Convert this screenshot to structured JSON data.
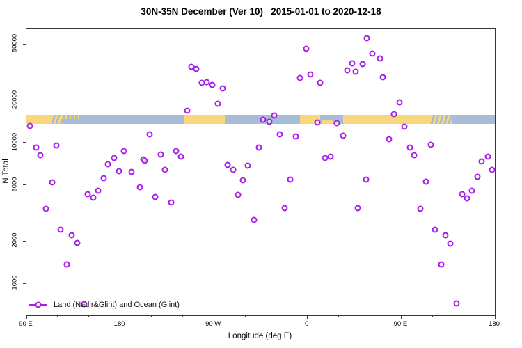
{
  "title": "30N-35N December (Ver 10)   2015-01-01 to 2020-12-18",
  "colors": {
    "marker": "#A61BE8",
    "land": "#F9D77E",
    "ocean": "#A9BCD7",
    "axis": "#383838"
  },
  "chart_data": {
    "type": "scatter",
    "title": "30N-35N December (Ver 10)   2015-01-01 to 2020-12-18",
    "xlabel": "Longitude (deg E)",
    "ylabel": "N Total",
    "x_axis": {
      "note": "longitude unwrapped eastward: 90E -> 180 -> 90W -> 0 -> 90E -> 180",
      "range_deg": [
        90,
        540
      ],
      "major_ticks": [
        {
          "lon": 90,
          "label": "90 E"
        },
        {
          "lon": 180,
          "label": "180"
        },
        {
          "lon": 270,
          "label": "90 W"
        },
        {
          "lon": 360,
          "label": "0"
        },
        {
          "lon": 450,
          "label": "90 E"
        },
        {
          "lon": 540,
          "label": "180"
        }
      ],
      "minor_ticks_lon": [
        120,
        150,
        210,
        240,
        300,
        330,
        390,
        420,
        480,
        510
      ]
    },
    "y_axis": {
      "scale": "log10",
      "ticks": [
        1000,
        2000,
        5000,
        10000,
        20000,
        50000
      ],
      "range": [
        900,
        60000
      ],
      "grid": false
    },
    "legend": {
      "label": "Land (Nadir&Glint) and Ocean (Glint)",
      "marker": "open-circle-on-line",
      "position": "bottom-left-inside"
    },
    "map_strip": {
      "description": "land/ocean map band of the 30N-35N latitude zone drawn across the plot",
      "n_top": 15700,
      "n_bottom": 13600,
      "base": "ocean",
      "land_segments": [
        {
          "from": 90,
          "to": 114,
          "type": "land"
        },
        {
          "from": 114,
          "to": 123.5,
          "type": "mixed"
        },
        {
          "from": 123.5,
          "to": 143.5,
          "type": "islands-top"
        },
        {
          "from": 241.8,
          "to": 280.6,
          "type": "land"
        },
        {
          "from": 352.8,
          "to": 372.2,
          "type": "land"
        },
        {
          "from": 374.5,
          "to": 384.5,
          "type": "land-bottom"
        },
        {
          "from": 394.2,
          "to": 478.5,
          "type": "land"
        },
        {
          "from": 478.5,
          "to": 498.5,
          "type": "mixed"
        }
      ]
    },
    "series": [
      {
        "name": "Land (Nadir&Glint) and Ocean (Glint)",
        "marker_color": "#A61BE8",
        "points_lon_n": [
          [
            93.3,
            13100
          ],
          [
            99.4,
            9200
          ],
          [
            118.8,
            9520
          ],
          [
            103.4,
            8120
          ],
          [
            168.2,
            7000
          ],
          [
            174.3,
            7760
          ],
          [
            183.6,
            8690
          ],
          [
            178.9,
            6250
          ],
          [
            191.0,
            6180
          ],
          [
            202.3,
            7580
          ],
          [
            114.7,
            5210
          ],
          [
            108.7,
            3380
          ],
          [
            122.8,
            2400
          ],
          [
            133.5,
            2200
          ],
          [
            138.8,
            1940
          ],
          [
            128.8,
            1360
          ],
          [
            148.8,
            4300
          ],
          [
            154.2,
            4060
          ],
          [
            158.9,
            4550
          ],
          [
            164.2,
            5580
          ],
          [
            199.0,
            4810
          ],
          [
            145.5,
            713
          ],
          [
            248.5,
            34400
          ],
          [
            253.2,
            33250
          ],
          [
            258.5,
            26480
          ],
          [
            263.2,
            26790
          ],
          [
            268.5,
            25600
          ],
          [
            278.6,
            24200
          ],
          [
            273.9,
            18830
          ],
          [
            244.5,
            16810
          ],
          [
            317.3,
            14500
          ],
          [
            208.3,
            11430
          ],
          [
            203.7,
            7420
          ],
          [
            219.0,
            8210
          ],
          [
            233.8,
            8690
          ],
          [
            238.4,
            7940
          ],
          [
            223.1,
            6390
          ],
          [
            313.3,
            9200
          ],
          [
            283.3,
            6930
          ],
          [
            288.6,
            6390
          ],
          [
            302.6,
            6850
          ],
          [
            213.7,
            4100
          ],
          [
            229.1,
            3750
          ],
          [
            298.0,
            5390
          ],
          [
            293.3,
            4250
          ],
          [
            308.7,
            2820
          ],
          [
            358.8,
            46200
          ],
          [
            417.0,
            55000
          ],
          [
            422.3,
            42700
          ],
          [
            429.7,
            39400
          ],
          [
            402.9,
            36400
          ],
          [
            413.0,
            36000
          ],
          [
            398.3,
            32500
          ],
          [
            406.3,
            31800
          ],
          [
            432.4,
            29000
          ],
          [
            352.8,
            28700
          ],
          [
            362.8,
            30350
          ],
          [
            372.2,
            26500
          ],
          [
            328.0,
            15530
          ],
          [
            323.4,
            14020
          ],
          [
            369.5,
            13860
          ],
          [
            388.2,
            13700
          ],
          [
            333.4,
            11420
          ],
          [
            348.8,
            11040
          ],
          [
            394.2,
            11160
          ],
          [
            376.9,
            7760
          ],
          [
            382.2,
            7940
          ],
          [
            343.4,
            5460
          ],
          [
            338.1,
            3420
          ],
          [
            416.0,
            5455
          ],
          [
            408.0,
            3420
          ],
          [
            448.4,
            19260
          ],
          [
            443.0,
            15880
          ],
          [
            453.1,
            12940
          ],
          [
            438.4,
            10550
          ],
          [
            458.4,
            9200
          ],
          [
            478.5,
            9630
          ],
          [
            462.4,
            8120
          ],
          [
            533.3,
            7940
          ],
          [
            527.3,
            7330
          ],
          [
            473.8,
            5270
          ],
          [
            523.3,
            5710
          ],
          [
            537.3,
            6400
          ],
          [
            508.6,
            4300
          ],
          [
            517.9,
            4550
          ],
          [
            513.3,
            4010
          ],
          [
            468.5,
            3390
          ],
          [
            482.5,
            2410
          ],
          [
            492.5,
            2200
          ],
          [
            497.2,
            1920
          ],
          [
            488.5,
            1360
          ],
          [
            503.2,
            720
          ]
        ]
      }
    ]
  }
}
